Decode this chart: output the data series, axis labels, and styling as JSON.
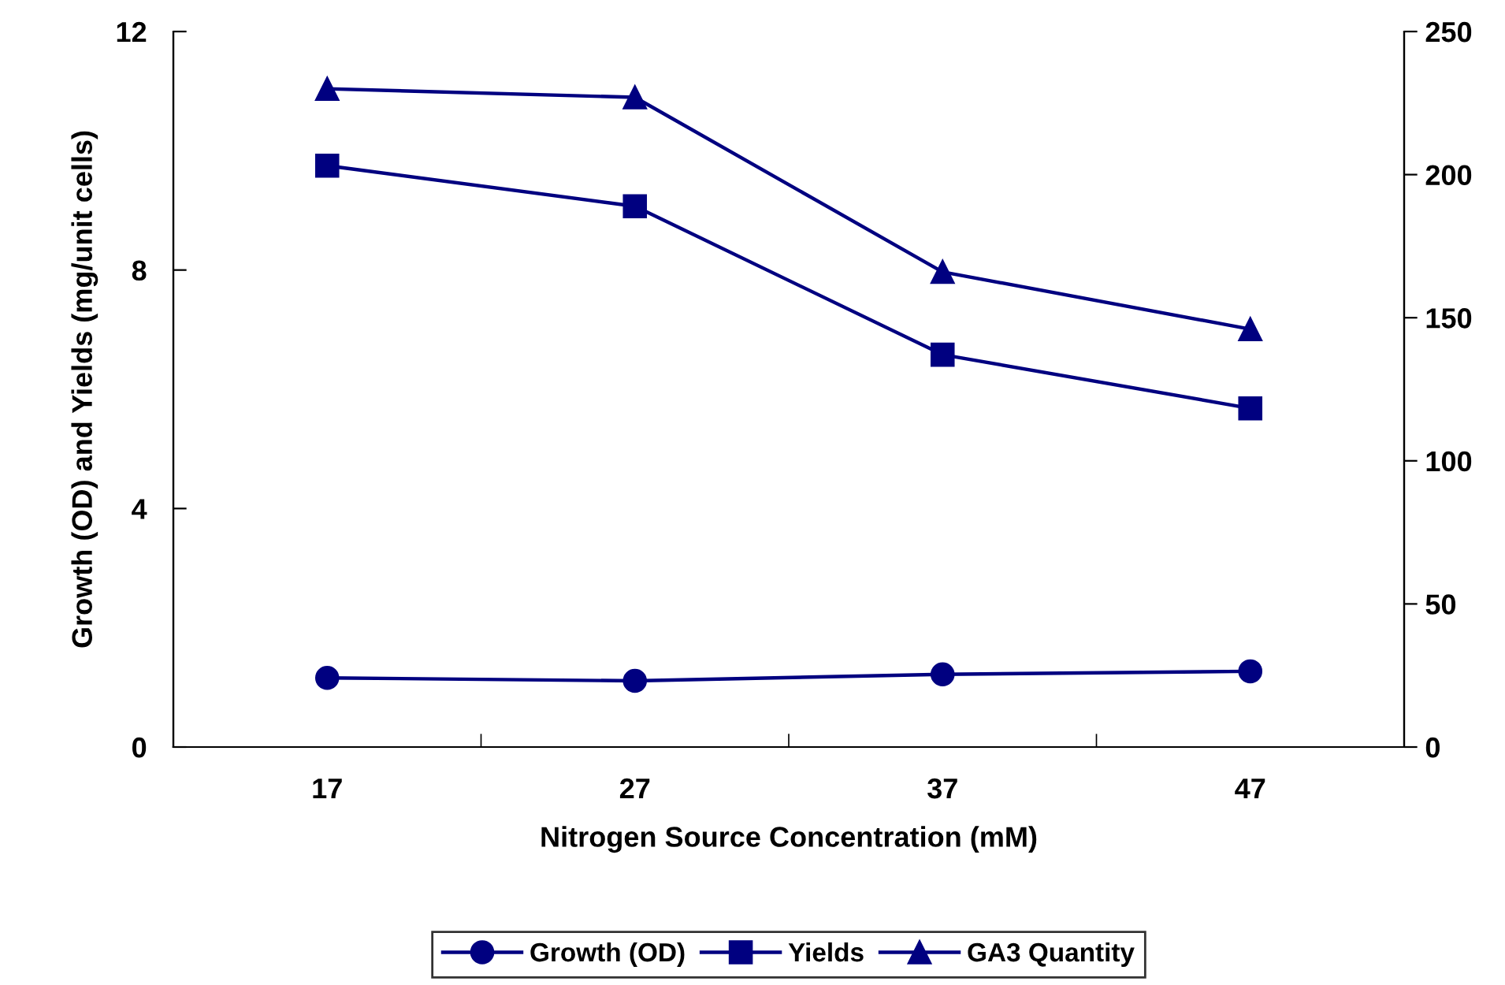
{
  "chart_data": {
    "type": "line",
    "xlabel": "Nitrogen Source Concentration (mM)",
    "ylabel": "Growth (OD) and Yields (mg/unit cells)",
    "categories": [
      "17",
      "27",
      "37",
      "47"
    ],
    "series": [
      {
        "name": "Growth (OD)",
        "color": "#000080",
        "marker": "circle",
        "values": [
          1.16,
          1.11,
          1.22,
          1.27
        ]
      },
      {
        "name": "Yields",
        "color": "#000080",
        "marker": "square",
        "values": [
          9.75,
          9.07,
          6.58,
          5.68
        ]
      },
      {
        "name": "GA3 Quantity",
        "color": "#000080",
        "marker": "triangle",
        "axis": "y2",
        "values": [
          230,
          227,
          166,
          146
        ]
      }
    ],
    "ylim": [
      0,
      12
    ],
    "yticks": [
      0,
      4,
      8,
      12
    ],
    "y2lim": [
      0,
      250
    ],
    "y2ticks": [
      0,
      50,
      100,
      150,
      200,
      250
    ],
    "grid": false,
    "legend": "bottom",
    "line_style": "solid"
  }
}
